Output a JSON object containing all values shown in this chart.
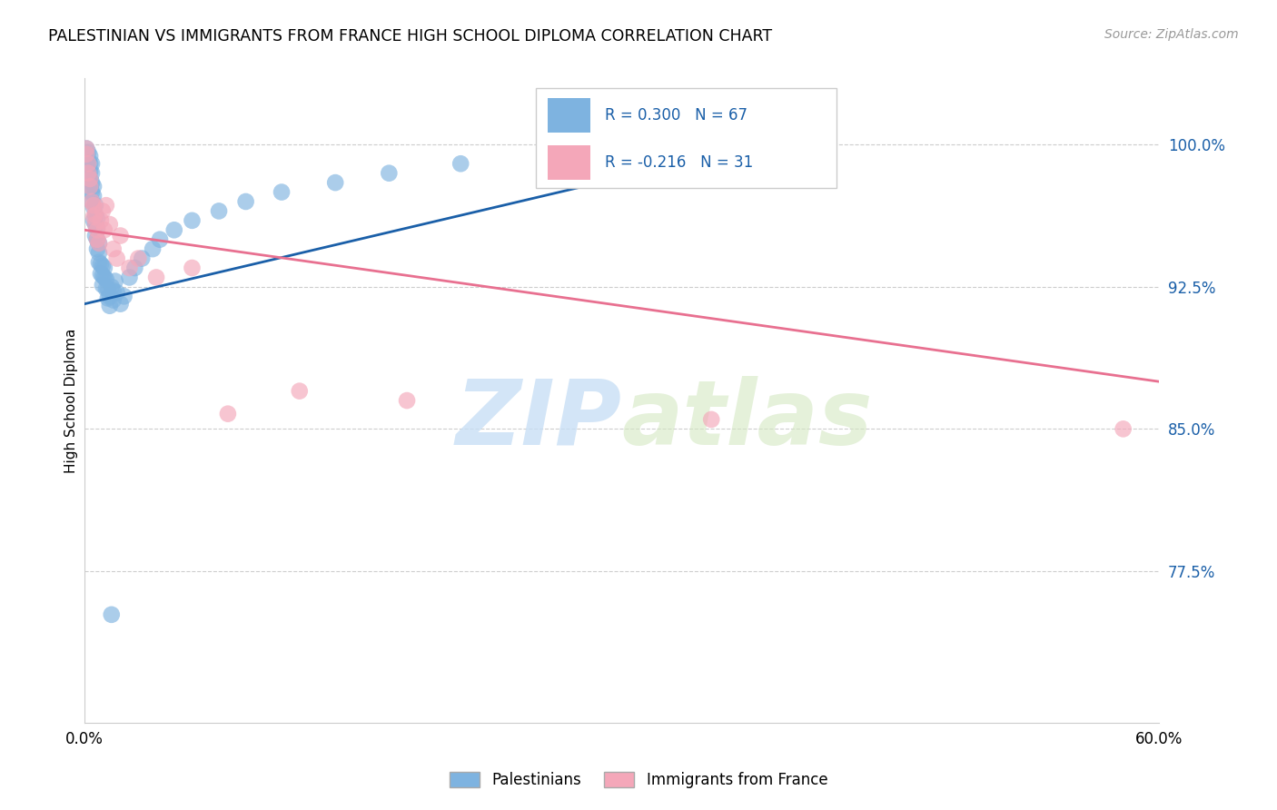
{
  "title": "PALESTINIAN VS IMMIGRANTS FROM FRANCE HIGH SCHOOL DIPLOMA CORRELATION CHART",
  "source": "Source: ZipAtlas.com",
  "ylabel": "High School Diploma",
  "yticks": [
    0.775,
    0.85,
    0.925,
    1.0
  ],
  "ytick_labels": [
    "77.5%",
    "85.0%",
    "92.5%",
    "100.0%"
  ],
  "xmin": 0.0,
  "xmax": 0.6,
  "ymin": 0.695,
  "ymax": 1.035,
  "blue_R": 0.3,
  "blue_N": 67,
  "pink_R": -0.216,
  "pink_N": 31,
  "blue_label": "Palestinians",
  "pink_label": "Immigrants from France",
  "blue_color": "#7eb3e0",
  "pink_color": "#f4a7b9",
  "blue_line_color": "#1a5fa8",
  "pink_line_color": "#e87090",
  "blue_line_x": [
    0.0,
    0.4
  ],
  "blue_line_y": [
    0.916,
    1.005
  ],
  "pink_line_x": [
    0.0,
    0.6
  ],
  "pink_line_y": [
    0.955,
    0.875
  ],
  "watermark_zip": "ZIP",
  "watermark_atlas": "atlas",
  "blue_scatter_x": [
    0.001,
    0.001,
    0.001,
    0.002,
    0.002,
    0.002,
    0.002,
    0.003,
    0.003,
    0.003,
    0.003,
    0.003,
    0.004,
    0.004,
    0.004,
    0.004,
    0.004,
    0.005,
    0.005,
    0.005,
    0.005,
    0.006,
    0.006,
    0.006,
    0.006,
    0.007,
    0.007,
    0.007,
    0.007,
    0.008,
    0.008,
    0.008,
    0.009,
    0.009,
    0.01,
    0.01,
    0.01,
    0.011,
    0.011,
    0.012,
    0.012,
    0.013,
    0.013,
    0.014,
    0.014,
    0.015,
    0.016,
    0.016,
    0.017,
    0.018,
    0.02,
    0.022,
    0.025,
    0.028,
    0.032,
    0.038,
    0.042,
    0.05,
    0.06,
    0.075,
    0.09,
    0.11,
    0.14,
    0.17,
    0.21,
    0.26,
    0.015
  ],
  "blue_scatter_y": [
    0.99,
    0.995,
    0.998,
    0.985,
    0.988,
    0.992,
    0.996,
    0.978,
    0.982,
    0.986,
    0.99,
    0.994,
    0.97,
    0.975,
    0.98,
    0.985,
    0.99,
    0.96,
    0.967,
    0.973,
    0.978,
    0.952,
    0.958,
    0.963,
    0.968,
    0.945,
    0.95,
    0.956,
    0.961,
    0.938,
    0.943,
    0.948,
    0.932,
    0.937,
    0.926,
    0.931,
    0.936,
    0.93,
    0.935,
    0.924,
    0.929,
    0.919,
    0.924,
    0.915,
    0.92,
    0.925,
    0.918,
    0.923,
    0.928,
    0.922,
    0.916,
    0.92,
    0.93,
    0.935,
    0.94,
    0.945,
    0.95,
    0.955,
    0.96,
    0.965,
    0.97,
    0.975,
    0.98,
    0.985,
    0.99,
    0.995,
    0.752
  ],
  "pink_scatter_x": [
    0.001,
    0.001,
    0.002,
    0.002,
    0.003,
    0.003,
    0.004,
    0.005,
    0.005,
    0.006,
    0.006,
    0.007,
    0.007,
    0.008,
    0.009,
    0.01,
    0.011,
    0.012,
    0.014,
    0.016,
    0.018,
    0.02,
    0.025,
    0.03,
    0.04,
    0.06,
    0.08,
    0.12,
    0.18,
    0.35,
    0.58
  ],
  "pink_scatter_y": [
    0.995,
    0.998,
    0.985,
    0.99,
    0.978,
    0.982,
    0.97,
    0.962,
    0.968,
    0.958,
    0.963,
    0.95,
    0.955,
    0.948,
    0.96,
    0.965,
    0.955,
    0.968,
    0.958,
    0.945,
    0.94,
    0.952,
    0.935,
    0.94,
    0.93,
    0.935,
    0.858,
    0.87,
    0.865,
    0.855,
    0.85
  ]
}
